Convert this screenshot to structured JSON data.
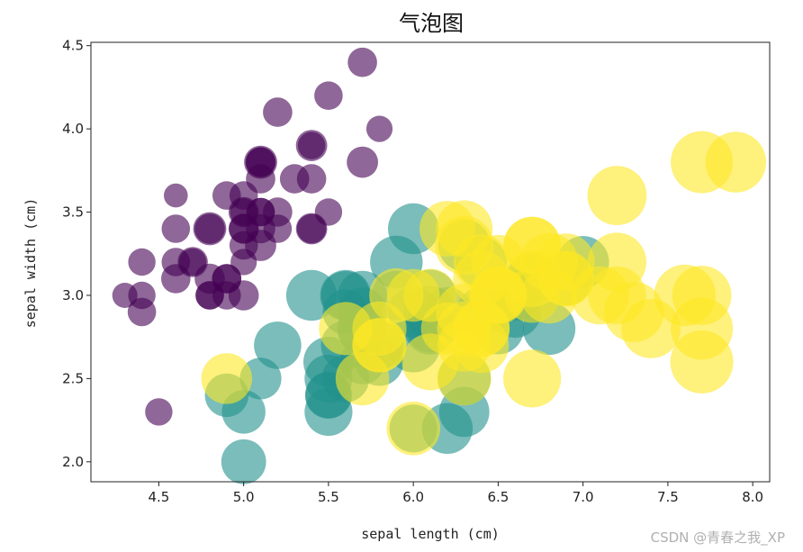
{
  "chart_data": {
    "type": "scatter",
    "title": "气泡图",
    "xlabel": "sepal length (cm)",
    "ylabel": "sepal width (cm)",
    "xlim": [
      4.1,
      8.1
    ],
    "ylim": [
      1.88,
      4.52
    ],
    "xticks": [
      "4.5",
      "5.0",
      "5.5",
      "6.0",
      "6.5",
      "7.0",
      "7.5",
      "8.0"
    ],
    "yticks": [
      "2.0",
      "2.5",
      "3.0",
      "3.5",
      "4.0",
      "4.5"
    ],
    "grid": false,
    "size_encoding": "petal length (cm)",
    "series": [
      {
        "color": "#440154",
        "opacity": 0.6,
        "points": [
          [
            5.1,
            3.5,
            1.4
          ],
          [
            4.9,
            3.0,
            1.4
          ],
          [
            4.7,
            3.2,
            1.3
          ],
          [
            4.6,
            3.1,
            1.5
          ],
          [
            5.0,
            3.6,
            1.4
          ],
          [
            5.4,
            3.9,
            1.7
          ],
          [
            4.6,
            3.4,
            1.4
          ],
          [
            5.0,
            3.4,
            1.5
          ],
          [
            4.4,
            2.9,
            1.4
          ],
          [
            4.9,
            3.1,
            1.5
          ],
          [
            5.4,
            3.7,
            1.5
          ],
          [
            4.8,
            3.4,
            1.6
          ],
          [
            4.8,
            3.0,
            1.4
          ],
          [
            4.3,
            3.0,
            1.1
          ],
          [
            5.8,
            4.0,
            1.2
          ],
          [
            5.7,
            4.4,
            1.5
          ],
          [
            5.4,
            3.9,
            1.3
          ],
          [
            5.1,
            3.5,
            1.4
          ],
          [
            5.7,
            3.8,
            1.7
          ],
          [
            5.1,
            3.8,
            1.5
          ],
          [
            5.4,
            3.4,
            1.7
          ],
          [
            5.1,
            3.7,
            1.5
          ],
          [
            4.6,
            3.6,
            1.0
          ],
          [
            5.1,
            3.3,
            1.7
          ],
          [
            4.8,
            3.4,
            1.9
          ],
          [
            5.0,
            3.0,
            1.6
          ],
          [
            5.0,
            3.4,
            1.6
          ],
          [
            5.2,
            3.5,
            1.5
          ],
          [
            5.2,
            3.4,
            1.4
          ],
          [
            4.7,
            3.2,
            1.6
          ],
          [
            4.8,
            3.1,
            1.6
          ],
          [
            5.4,
            3.4,
            1.5
          ],
          [
            5.2,
            4.1,
            1.5
          ],
          [
            5.5,
            4.2,
            1.4
          ],
          [
            4.9,
            3.1,
            1.5
          ],
          [
            5.0,
            3.2,
            1.2
          ],
          [
            5.5,
            3.5,
            1.3
          ],
          [
            4.9,
            3.6,
            1.4
          ],
          [
            4.4,
            3.0,
            1.3
          ],
          [
            5.1,
            3.4,
            1.5
          ],
          [
            5.0,
            3.5,
            1.3
          ],
          [
            4.5,
            2.3,
            1.3
          ],
          [
            4.4,
            3.2,
            1.3
          ],
          [
            5.0,
            3.5,
            1.6
          ],
          [
            5.1,
            3.8,
            1.9
          ],
          [
            4.8,
            3.0,
            1.4
          ],
          [
            5.1,
            3.8,
            1.6
          ],
          [
            4.6,
            3.2,
            1.4
          ],
          [
            5.3,
            3.7,
            1.5
          ],
          [
            5.0,
            3.3,
            1.4
          ]
        ]
      },
      {
        "color": "#21918c",
        "opacity": 0.6,
        "points": [
          [
            7.0,
            3.2,
            4.7
          ],
          [
            6.4,
            3.2,
            4.5
          ],
          [
            6.9,
            3.1,
            4.9
          ],
          [
            5.5,
            2.3,
            4.0
          ],
          [
            6.5,
            2.8,
            4.6
          ],
          [
            5.7,
            2.8,
            4.5
          ],
          [
            6.3,
            3.3,
            4.7
          ],
          [
            4.9,
            2.4,
            3.3
          ],
          [
            6.6,
            2.9,
            4.6
          ],
          [
            5.2,
            2.7,
            3.9
          ],
          [
            5.0,
            2.0,
            3.5
          ],
          [
            5.9,
            3.0,
            4.2
          ],
          [
            6.0,
            2.2,
            4.0
          ],
          [
            6.1,
            2.9,
            4.7
          ],
          [
            5.6,
            2.9,
            3.6
          ],
          [
            6.7,
            3.1,
            4.4
          ],
          [
            5.6,
            3.0,
            4.5
          ],
          [
            5.8,
            2.7,
            4.1
          ],
          [
            6.2,
            2.2,
            4.5
          ],
          [
            5.6,
            2.5,
            3.9
          ],
          [
            5.9,
            3.2,
            4.8
          ],
          [
            6.1,
            2.8,
            4.0
          ],
          [
            6.3,
            2.5,
            4.9
          ],
          [
            6.1,
            2.8,
            4.7
          ],
          [
            6.4,
            2.9,
            4.3
          ],
          [
            6.6,
            3.0,
            4.4
          ],
          [
            6.8,
            2.8,
            4.8
          ],
          [
            6.7,
            3.0,
            5.0
          ],
          [
            6.0,
            2.9,
            4.5
          ],
          [
            5.7,
            2.6,
            3.5
          ],
          [
            5.5,
            2.4,
            3.8
          ],
          [
            5.5,
            2.4,
            3.7
          ],
          [
            5.8,
            2.7,
            3.9
          ],
          [
            6.0,
            2.7,
            5.1
          ],
          [
            5.4,
            3.0,
            4.5
          ],
          [
            6.0,
            3.4,
            4.5
          ],
          [
            6.7,
            3.1,
            4.7
          ],
          [
            6.3,
            2.3,
            4.4
          ],
          [
            5.6,
            3.0,
            4.1
          ],
          [
            5.5,
            2.5,
            4.0
          ],
          [
            5.5,
            2.6,
            4.4
          ],
          [
            6.1,
            3.0,
            4.6
          ],
          [
            5.8,
            2.6,
            4.0
          ],
          [
            5.0,
            2.3,
            3.3
          ],
          [
            5.6,
            2.7,
            4.2
          ],
          [
            5.7,
            3.0,
            4.2
          ],
          [
            5.7,
            2.9,
            4.2
          ],
          [
            6.2,
            2.9,
            4.3
          ],
          [
            5.1,
            2.5,
            3.0
          ],
          [
            5.7,
            2.8,
            4.1
          ]
        ]
      },
      {
        "color": "#fde725",
        "opacity": 0.6,
        "points": [
          [
            6.3,
            3.3,
            6.0
          ],
          [
            5.8,
            2.7,
            5.1
          ],
          [
            7.1,
            3.0,
            5.9
          ],
          [
            6.3,
            2.9,
            5.6
          ],
          [
            6.5,
            3.0,
            5.8
          ],
          [
            7.6,
            3.0,
            6.6
          ],
          [
            4.9,
            2.5,
            4.5
          ],
          [
            7.3,
            2.9,
            6.3
          ],
          [
            6.7,
            2.5,
            5.8
          ],
          [
            7.2,
            3.6,
            6.1
          ],
          [
            6.5,
            3.2,
            5.1
          ],
          [
            6.4,
            2.7,
            5.3
          ],
          [
            6.8,
            3.0,
            5.5
          ],
          [
            5.7,
            2.5,
            5.0
          ],
          [
            5.8,
            2.8,
            5.1
          ],
          [
            6.4,
            3.2,
            5.3
          ],
          [
            6.5,
            3.0,
            5.5
          ],
          [
            7.7,
            3.8,
            6.7
          ],
          [
            7.7,
            2.6,
            6.9
          ],
          [
            6.0,
            2.2,
            5.0
          ],
          [
            6.9,
            3.2,
            5.7
          ],
          [
            5.6,
            2.8,
            4.9
          ],
          [
            7.7,
            2.8,
            6.7
          ],
          [
            6.3,
            2.7,
            4.9
          ],
          [
            6.7,
            3.3,
            5.7
          ],
          [
            7.2,
            3.2,
            6.0
          ],
          [
            6.2,
            2.8,
            4.8
          ],
          [
            6.1,
            3.0,
            4.9
          ],
          [
            6.4,
            2.8,
            5.6
          ],
          [
            7.2,
            3.0,
            5.8
          ],
          [
            7.4,
            2.8,
            6.1
          ],
          [
            7.9,
            3.8,
            6.4
          ],
          [
            6.4,
            2.8,
            5.6
          ],
          [
            6.3,
            2.8,
            5.1
          ],
          [
            6.1,
            2.6,
            5.6
          ],
          [
            7.7,
            3.0,
            6.1
          ],
          [
            6.3,
            3.4,
            5.6
          ],
          [
            6.4,
            3.1,
            5.5
          ],
          [
            6.0,
            3.0,
            4.8
          ],
          [
            6.9,
            3.1,
            5.4
          ],
          [
            6.7,
            3.1,
            5.6
          ],
          [
            6.9,
            3.1,
            5.1
          ],
          [
            5.8,
            2.7,
            5.1
          ],
          [
            6.8,
            3.2,
            5.9
          ],
          [
            6.7,
            3.3,
            5.7
          ],
          [
            6.7,
            3.0,
            5.2
          ],
          [
            6.3,
            2.5,
            5.0
          ],
          [
            6.5,
            3.0,
            5.2
          ],
          [
            6.2,
            3.4,
            5.4
          ],
          [
            5.9,
            3.0,
            5.1
          ]
        ]
      }
    ]
  },
  "watermark": "CSDN @青春之我_XP"
}
